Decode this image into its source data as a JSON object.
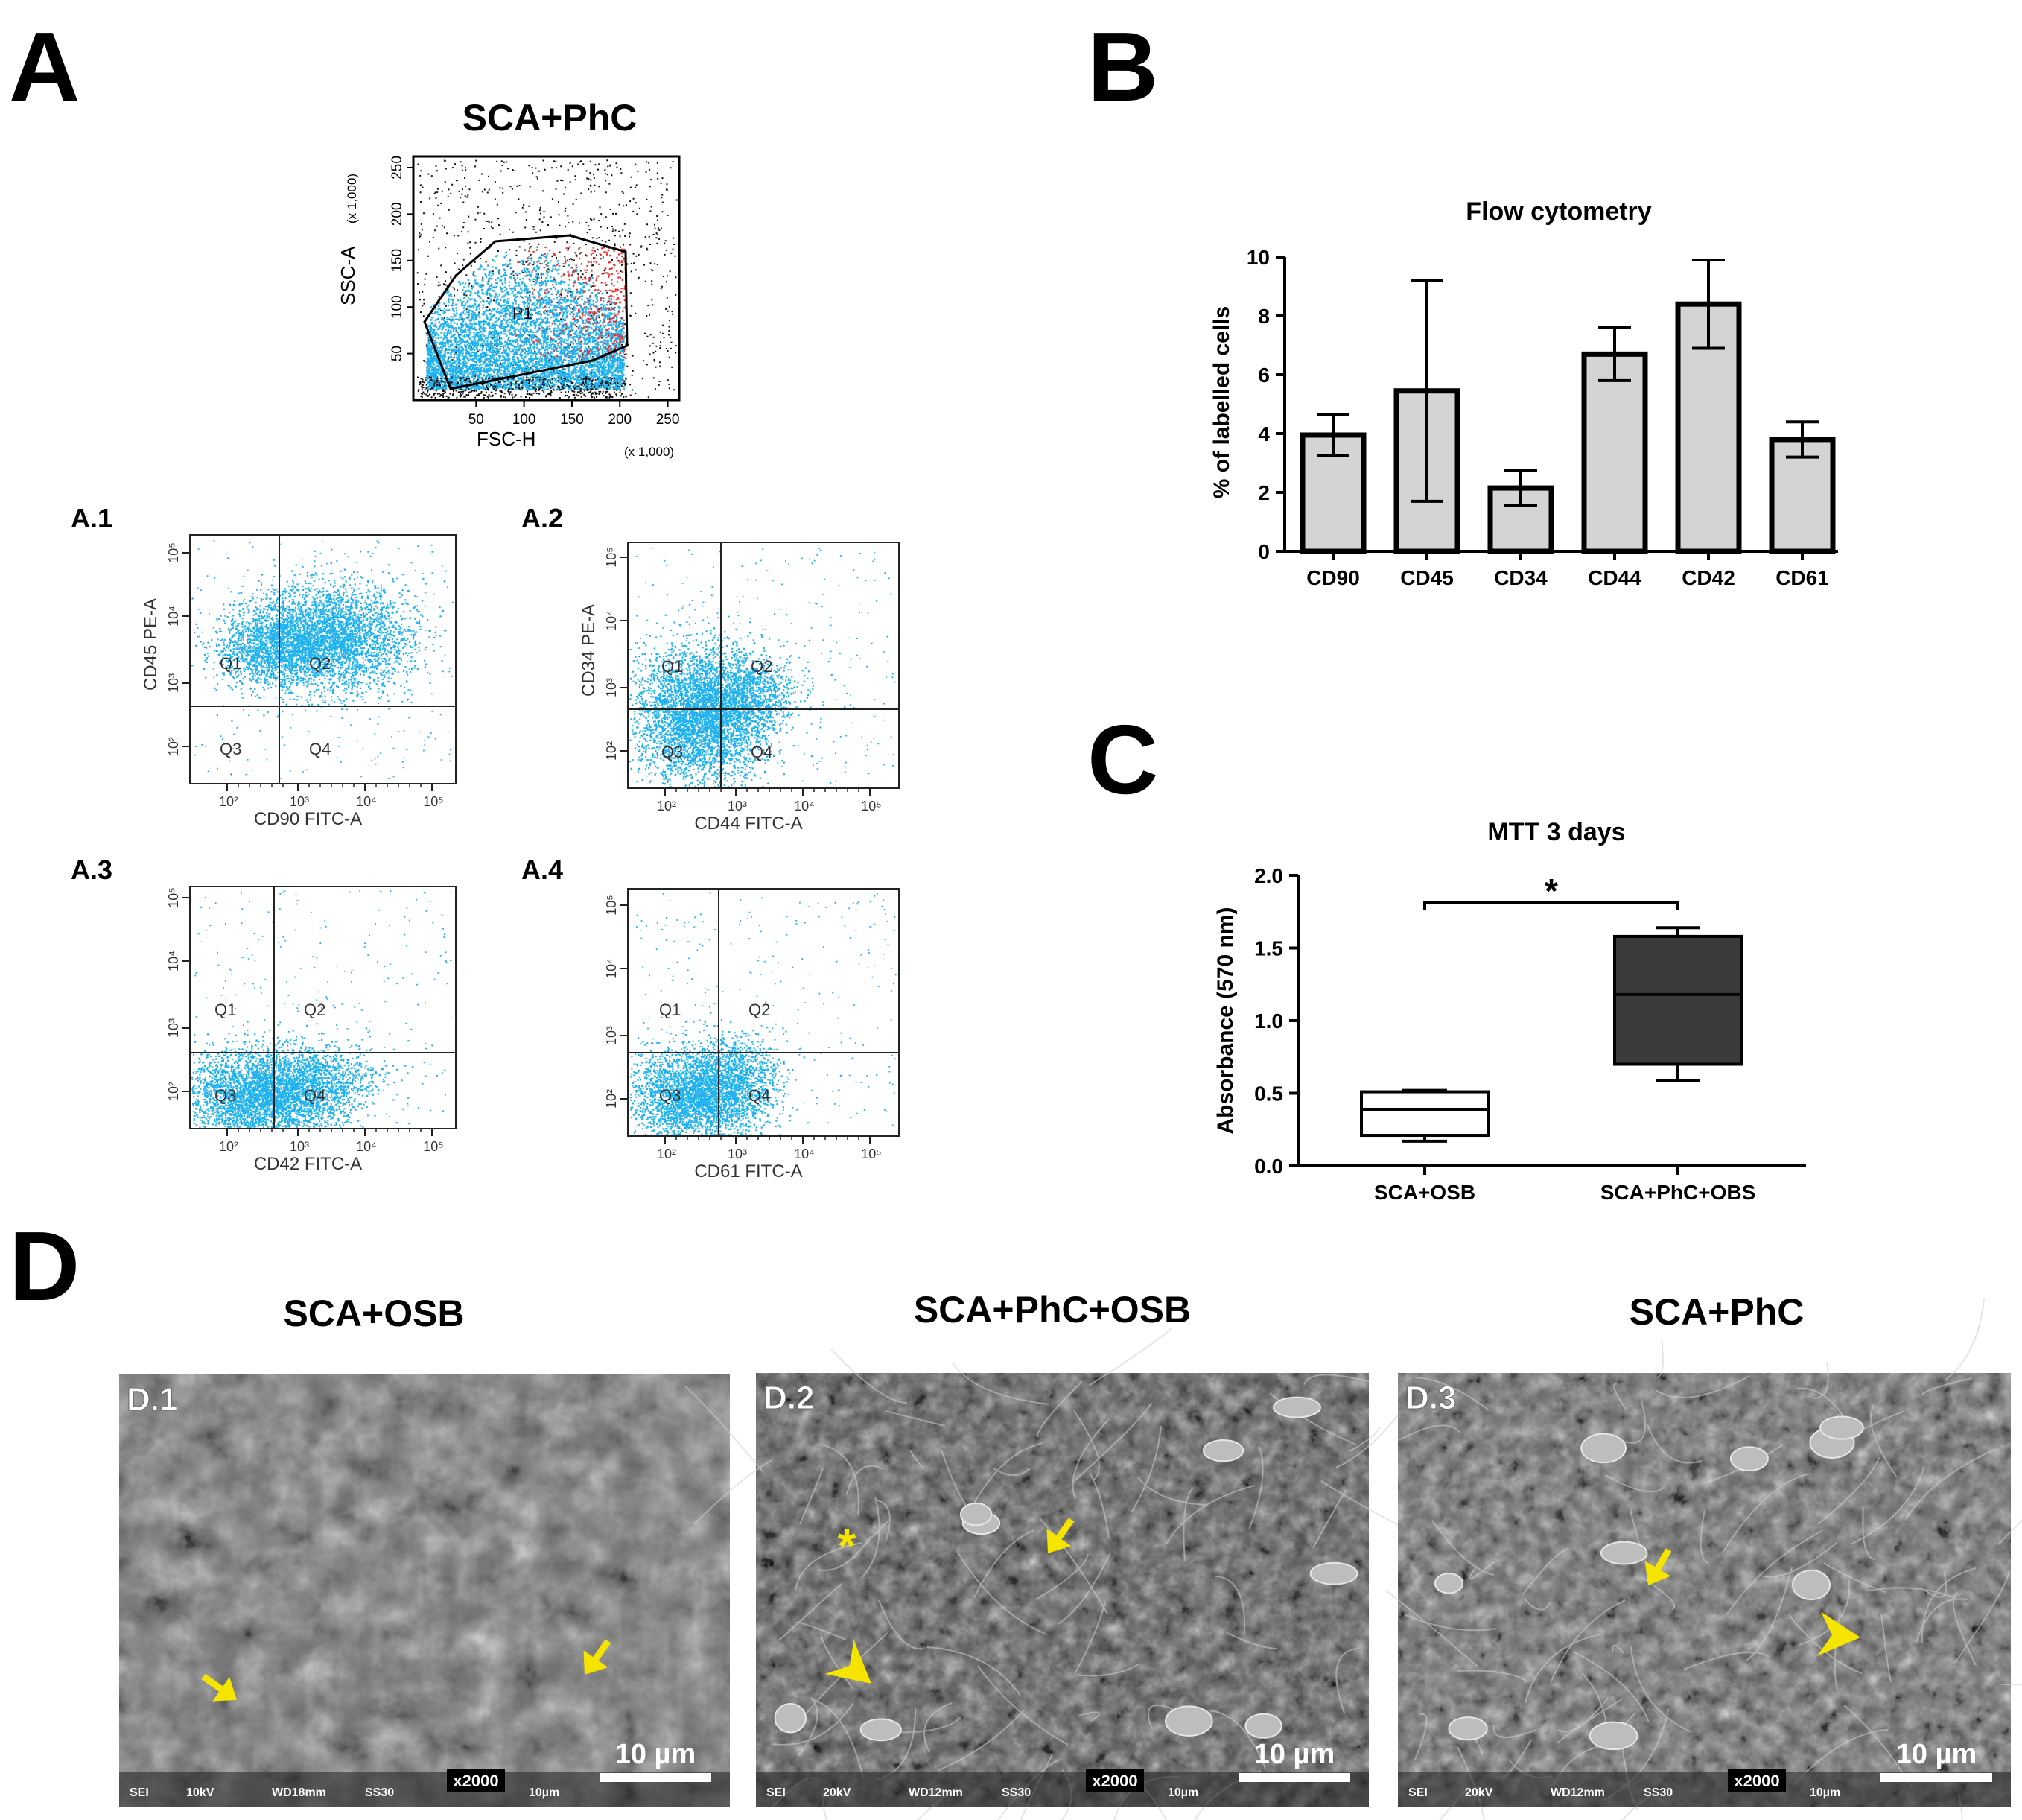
{
  "panels": {
    "a": "A",
    "b": "B",
    "c": "C",
    "d": "D"
  },
  "panel_a": {
    "title": "SCA+PhC",
    "gate_plot": {
      "gate_label": "P1",
      "xlabel": "FSC-H",
      "ylabel": "SSC-A",
      "x_multiplier": "(x 1,000)",
      "y_multiplier": "(x 1,000)",
      "x_ticks": [
        "50",
        "100",
        "150",
        "200",
        "250"
      ],
      "y_ticks": [
        "50",
        "100",
        "150",
        "200",
        "250"
      ],
      "dot_colors": {
        "gated": "#1fb2ee",
        "high": "#e8312f",
        "outside": "#111111"
      }
    },
    "subplots": [
      {
        "label": "A.1",
        "xlabel": "CD90 FITC-A",
        "ylabel": "CD45 PE-A",
        "quadrants": [
          "Q1",
          "Q2",
          "Q3",
          "Q4"
        ]
      },
      {
        "label": "A.2",
        "xlabel": "CD44 FITC-A",
        "ylabel": "CD34 PE-A",
        "quadrants": [
          "Q1",
          "Q2",
          "Q3",
          "Q4"
        ]
      },
      {
        "label": "A.3",
        "xlabel": "CD42 FITC-A",
        "ylabel": "",
        "quadrants": [
          "Q1",
          "Q2",
          "Q3",
          "Q4"
        ]
      },
      {
        "label": "A.4",
        "xlabel": "CD61 FITC-A",
        "ylabel": "",
        "quadrants": [
          "Q1",
          "Q2",
          "Q3",
          "Q4"
        ]
      }
    ],
    "log_ticks": [
      "10²",
      "10³",
      "10⁴",
      "10⁵"
    ]
  },
  "chart_data": [
    {
      "type": "bar",
      "title": "Flow cytometry",
      "xlabel": "",
      "ylabel": "% of labelled cells",
      "categories": [
        "CD90",
        "CD45",
        "CD34",
        "CD44",
        "CD42",
        "CD61"
      ],
      "values": [
        3.95,
        5.45,
        2.15,
        6.7,
        8.4,
        3.8
      ],
      "error": [
        0.7,
        3.75,
        0.6,
        0.9,
        1.5,
        0.6
      ],
      "ylim": [
        0,
        10
      ],
      "yticks": [
        "0",
        "2",
        "4",
        "6",
        "8",
        "10"
      ],
      "bar_color": "#d4d4d4"
    },
    {
      "type": "box",
      "title": "MTT 3 days",
      "xlabel": "",
      "ylabel": "Absorbance (570 nm)",
      "categories": [
        "SCA+OSB",
        "SCA+PhC+OBS"
      ],
      "boxes": [
        {
          "min": 0.17,
          "q1": 0.21,
          "median": 0.39,
          "q3": 0.51,
          "max": 0.52,
          "fill": "#ffffff"
        },
        {
          "min": 0.59,
          "q1": 0.7,
          "median": 1.18,
          "q3": 1.58,
          "max": 1.64,
          "fill": "#3b3b3b"
        }
      ],
      "ylim": [
        0,
        2
      ],
      "yticks": [
        "0.0",
        "0.5",
        "1.0",
        "1.5",
        "2.0"
      ],
      "significance": "*"
    }
  ],
  "panel_d": {
    "columns": [
      "SCA+OSB",
      "SCA+PhC+OSB",
      "SCA+PhC"
    ],
    "images": [
      {
        "label": "D.1",
        "scale": "10 µm",
        "mag": "x2000",
        "meta": [
          "SEI",
          "10kV",
          "WD18mm",
          "SS30",
          "10µm"
        ]
      },
      {
        "label": "D.2",
        "scale": "10 µm",
        "mag": "x2000",
        "meta": [
          "SEI",
          "20kV",
          "WD12mm",
          "SS30",
          "10µm"
        ]
      },
      {
        "label": "D.3",
        "scale": "10 µm",
        "mag": "x2000",
        "meta": [
          "SEI",
          "20kV",
          "WD12mm",
          "SS30",
          "10µm"
        ]
      }
    ],
    "asterisk": "*",
    "marker_color": "#f5e400"
  }
}
